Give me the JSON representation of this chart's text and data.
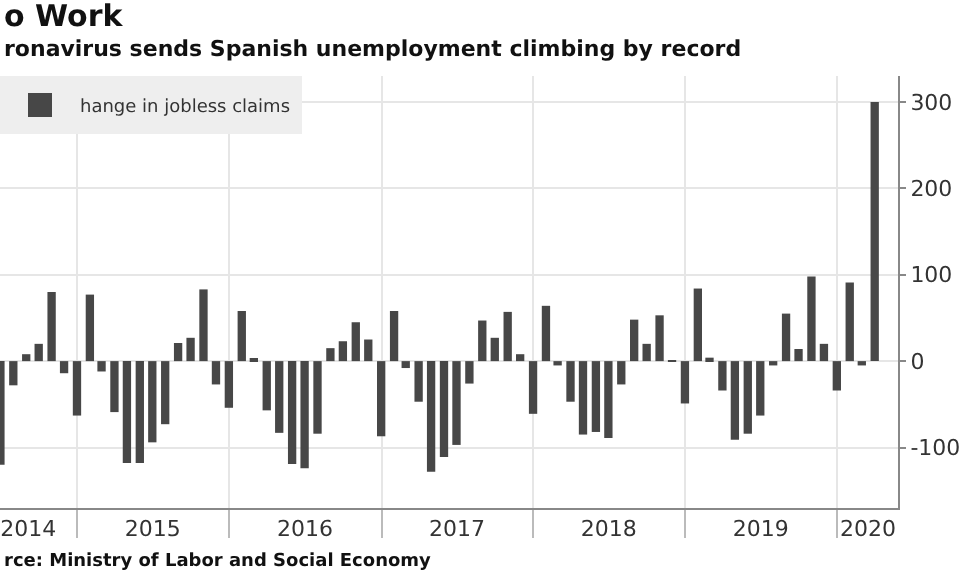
{
  "chart_data": {
    "type": "bar",
    "title": "o Work",
    "subtitle": "ronavirus sends Spanish unemployment climbing by record",
    "annotations": [
      "rce: Ministry of Labor and Social Economy"
    ],
    "x": [
      "2014-06-30",
      "2014-07-31",
      "2014-08-31",
      "2014-09-30",
      "2014-10-31",
      "2014-11-30",
      "2014-12-31",
      "2015-01-31",
      "2015-02-28",
      "2015-03-31",
      "2015-04-30",
      "2015-05-31",
      "2015-06-30",
      "2015-07-31",
      "2015-08-31",
      "2015-09-30",
      "2015-10-31",
      "2015-11-30",
      "2015-12-31",
      "2016-01-31",
      "2016-02-29",
      "2016-03-31",
      "2016-04-30",
      "2016-05-31",
      "2016-06-30",
      "2016-07-31",
      "2016-08-31",
      "2016-09-30",
      "2016-10-31",
      "2016-11-30",
      "2016-12-31",
      "2017-01-31",
      "2017-02-28",
      "2017-03-31",
      "2017-04-30",
      "2017-05-31",
      "2017-06-30",
      "2017-07-31",
      "2017-08-31",
      "2017-09-30",
      "2017-10-31",
      "2017-11-30",
      "2017-12-31",
      "2018-01-31",
      "2018-02-28",
      "2018-03-31",
      "2018-04-30",
      "2018-05-31",
      "2018-06-30",
      "2018-07-31",
      "2018-08-31",
      "2018-09-30",
      "2018-10-31",
      "2018-11-30",
      "2018-12-31",
      "2019-01-31",
      "2019-02-28",
      "2019-03-31",
      "2019-04-30",
      "2019-05-31",
      "2019-06-30",
      "2019-07-31",
      "2019-08-31",
      "2019-09-30",
      "2019-10-31",
      "2019-11-30",
      "2019-12-31",
      "2020-01-31",
      "2020-02-29",
      "2020-03-31"
    ],
    "series": [
      {
        "name": "hange in jobless claims",
        "color": "#474747",
        "values": [
          -120,
          -28,
          8,
          20,
          80,
          -14,
          -63,
          77,
          -12,
          -59,
          -118,
          -118,
          -94,
          -73,
          21,
          27,
          83,
          -27,
          -54,
          58,
          2,
          -57,
          -83,
          -119,
          -124,
          -84,
          15,
          23,
          45,
          25,
          -87,
          58,
          -8,
          -47,
          -128,
          -111,
          -97,
          -26,
          47,
          27,
          57,
          8,
          -61,
          64,
          -5,
          -47,
          -85,
          -82,
          -89,
          -27,
          48,
          20,
          53,
          1,
          -49,
          84,
          4,
          -34,
          -91,
          -84,
          -63,
          -5,
          55,
          14,
          98,
          20,
          -34,
          91,
          -5,
          300
        ]
      }
    ],
    "xlim": [
      "2014-06-29",
      "2020-05-26"
    ],
    "xticks": [
      {
        "value": "2014-09-05",
        "label": "2014"
      },
      {
        "value": "2015-07-01",
        "label": "2015"
      },
      {
        "value": "2016-07-01",
        "label": "2016"
      },
      {
        "value": "2017-07-01",
        "label": "2017"
      },
      {
        "value": "2018-07-01",
        "label": "2018"
      },
      {
        "value": "2019-07-01",
        "label": "2019"
      },
      {
        "value": "2020-03-15",
        "label": "2020"
      },
      {
        "value": "2015-01-01",
        "label": null
      },
      {
        "value": "2016-01-01",
        "label": null
      },
      {
        "value": "2017-01-01",
        "label": null
      },
      {
        "value": "2018-01-01",
        "label": null
      },
      {
        "value": "2019-01-01",
        "label": null
      },
      {
        "value": "2020-01-01",
        "label": null
      }
    ],
    "ylim": [
      -170,
      330
    ],
    "yticks": [
      -100,
      0,
      100,
      200,
      300
    ],
    "grid": true,
    "legend": "top left"
  }
}
